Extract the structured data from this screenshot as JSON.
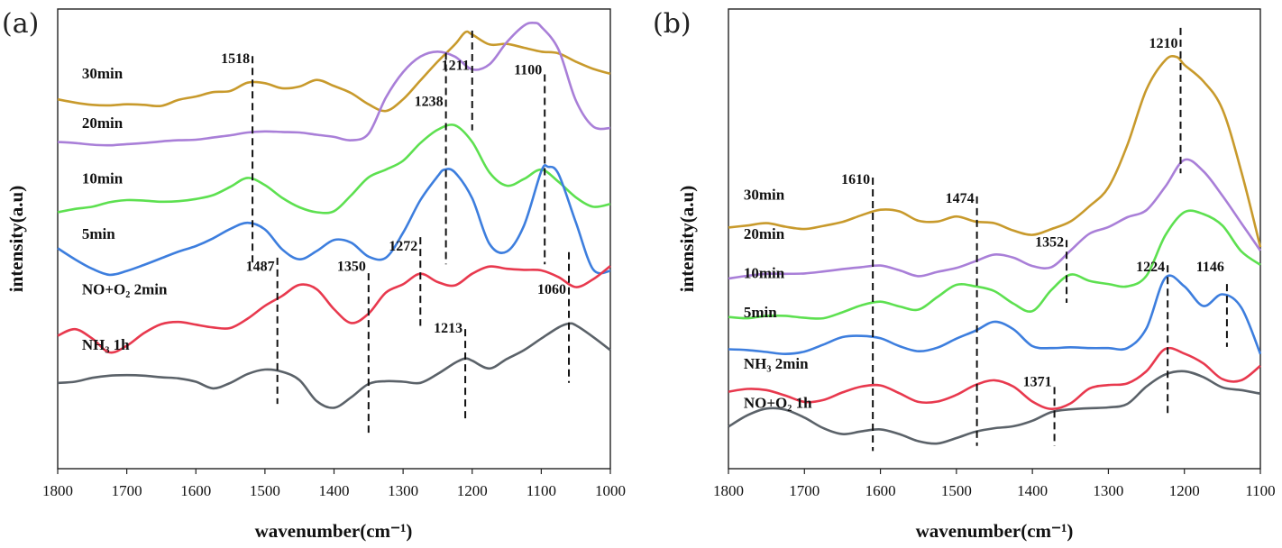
{
  "chart_data": [
    {
      "type": "line",
      "panel_label": "(a)",
      "xlabel": "wavenumber(cm⁻¹)",
      "ylabel": "intensity(a.u)",
      "xlim": [
        1800,
        1000
      ],
      "x_ticks": [
        1800,
        1700,
        1600,
        1500,
        1400,
        1300,
        1200,
        1100,
        1000
      ],
      "grid": false,
      "series": [
        {
          "name": "30min",
          "color": "#c89a2c",
          "label_x": 1765,
          "label_y": 6.45,
          "x": [
            1800,
            1775,
            1750,
            1725,
            1700,
            1675,
            1650,
            1625,
            1600,
            1575,
            1550,
            1525,
            1500,
            1475,
            1450,
            1425,
            1400,
            1375,
            1350,
            1325,
            1300,
            1275,
            1250,
            1225,
            1210,
            1200,
            1175,
            1150,
            1125,
            1100,
            1075,
            1050,
            1025,
            1000
          ],
          "y": [
            6.07,
            6.01,
            5.97,
            5.96,
            5.98,
            5.97,
            5.95,
            6.06,
            6.12,
            6.2,
            6.22,
            6.37,
            6.36,
            6.27,
            6.3,
            6.42,
            6.31,
            6.18,
            5.98,
            5.86,
            6.07,
            6.41,
            6.75,
            7.06,
            7.28,
            7.24,
            7.06,
            7.07,
            7.0,
            6.93,
            6.9,
            6.75,
            6.62,
            6.53
          ]
        },
        {
          "name": "20min",
          "color": "#a97fd8",
          "label_x": 1765,
          "label_y": 5.55,
          "x": [
            1800,
            1775,
            1750,
            1725,
            1700,
            1675,
            1650,
            1625,
            1600,
            1575,
            1550,
            1525,
            1500,
            1475,
            1450,
            1425,
            1400,
            1375,
            1350,
            1325,
            1300,
            1275,
            1250,
            1225,
            1200,
            1175,
            1150,
            1125,
            1110,
            1100,
            1075,
            1050,
            1025,
            1000
          ],
          "y": [
            5.3,
            5.28,
            5.25,
            5.24,
            5.26,
            5.28,
            5.31,
            5.33,
            5.34,
            5.38,
            5.42,
            5.47,
            5.49,
            5.48,
            5.47,
            5.43,
            5.39,
            5.33,
            5.45,
            6.1,
            6.56,
            6.84,
            6.93,
            6.84,
            6.61,
            6.7,
            7.1,
            7.4,
            7.45,
            7.38,
            6.97,
            6.05,
            5.58,
            5.55
          ]
        },
        {
          "name": "10min",
          "color": "#5de050",
          "label_x": 1765,
          "label_y": 4.55,
          "x": [
            1800,
            1775,
            1750,
            1725,
            1700,
            1675,
            1650,
            1625,
            1600,
            1575,
            1550,
            1525,
            1500,
            1475,
            1450,
            1425,
            1400,
            1375,
            1350,
            1325,
            1300,
            1275,
            1250,
            1225,
            1200,
            1175,
            1150,
            1125,
            1100,
            1075,
            1050,
            1025,
            1000
          ],
          "y": [
            4.03,
            4.09,
            4.13,
            4.21,
            4.25,
            4.24,
            4.22,
            4.23,
            4.27,
            4.34,
            4.49,
            4.65,
            4.52,
            4.29,
            4.12,
            4.03,
            4.05,
            4.34,
            4.66,
            4.8,
            4.96,
            5.28,
            5.52,
            5.6,
            5.3,
            4.75,
            4.51,
            4.63,
            4.8,
            4.58,
            4.3,
            4.13,
            4.18
          ]
        },
        {
          "name": "5min",
          "color": "#3d7ede",
          "label_x": 1765,
          "label_y": 3.55,
          "x": [
            1800,
            1775,
            1750,
            1725,
            1700,
            1675,
            1650,
            1625,
            1600,
            1575,
            1550,
            1525,
            1500,
            1475,
            1450,
            1425,
            1400,
            1375,
            1350,
            1325,
            1300,
            1275,
            1250,
            1240,
            1225,
            1200,
            1175,
            1150,
            1125,
            1100,
            1090,
            1075,
            1050,
            1025,
            1000
          ],
          "y": [
            3.38,
            3.18,
            3.01,
            2.9,
            2.97,
            3.08,
            3.2,
            3.32,
            3.42,
            3.56,
            3.73,
            3.84,
            3.72,
            3.36,
            3.18,
            3.33,
            3.53,
            3.48,
            3.23,
            3.21,
            3.66,
            4.25,
            4.68,
            4.8,
            4.75,
            4.28,
            3.46,
            3.32,
            3.79,
            4.77,
            4.85,
            4.72,
            3.85,
            3.0,
            2.97
          ]
        },
        {
          "name": "NO+O₂ 2min",
          "color": "#e8394e",
          "label_x": 1765,
          "label_y": 2.55,
          "x": [
            1800,
            1775,
            1750,
            1725,
            1700,
            1675,
            1650,
            1625,
            1600,
            1575,
            1550,
            1525,
            1500,
            1475,
            1450,
            1425,
            1400,
            1375,
            1350,
            1325,
            1300,
            1275,
            1250,
            1225,
            1200,
            1175,
            1150,
            1125,
            1100,
            1075,
            1050,
            1025,
            1000
          ],
          "y": [
            1.8,
            1.92,
            1.75,
            1.5,
            1.62,
            1.85,
            2.01,
            2.05,
            2.0,
            1.95,
            1.94,
            2.11,
            2.34,
            2.52,
            2.72,
            2.64,
            2.28,
            2.03,
            2.2,
            2.58,
            2.73,
            2.92,
            2.77,
            2.71,
            2.92,
            3.05,
            3.01,
            2.99,
            2.98,
            2.86,
            2.68,
            2.82,
            3.06
          ]
        },
        {
          "name": "NH₃ 1h",
          "color": "#5b6269",
          "label_x": 1765,
          "label_y": 1.55,
          "x": [
            1800,
            1775,
            1750,
            1725,
            1700,
            1675,
            1650,
            1625,
            1600,
            1575,
            1550,
            1525,
            1500,
            1475,
            1450,
            1425,
            1400,
            1375,
            1350,
            1325,
            1300,
            1275,
            1250,
            1225,
            1210,
            1200,
            1175,
            1150,
            1125,
            1100,
            1075,
            1060,
            1050,
            1025,
            1000
          ],
          "y": [
            0.95,
            0.97,
            1.04,
            1.08,
            1.09,
            1.08,
            1.05,
            1.03,
            0.97,
            0.85,
            0.95,
            1.11,
            1.19,
            1.15,
            1.0,
            0.62,
            0.5,
            0.69,
            0.93,
            0.98,
            0.97,
            0.95,
            1.11,
            1.31,
            1.39,
            1.35,
            1.21,
            1.38,
            1.54,
            1.75,
            1.95,
            2.02,
            1.99,
            1.78,
            1.54
          ]
        }
      ],
      "peak_markers": [
        {
          "label": "1518",
          "x": 1518,
          "y_top": 6.85,
          "y_bottom": 3.05,
          "label_y": 6.72
        },
        {
          "label": "1238",
          "x": 1238,
          "y_top": 6.91,
          "y_bottom": 3.09,
          "label_y": 5.95
        },
        {
          "label": "1211",
          "x": 1200,
          "y_top": 7.31,
          "y_bottom": 5.51,
          "label_y": 6.6
        },
        {
          "label": "1100",
          "x": 1095,
          "y_top": 6.52,
          "y_bottom": 3.09,
          "label_y": 6.52
        },
        {
          "label": "1487",
          "x": 1482,
          "y_top": 3.21,
          "y_bottom": 0.57,
          "label_y": 2.97
        },
        {
          "label": "1350",
          "x": 1350,
          "y_top": 2.93,
          "y_bottom": 0.04,
          "label_y": 2.97
        },
        {
          "label": "1272",
          "x": 1275,
          "y_top": 3.58,
          "y_bottom": 1.98,
          "label_y": 3.34
        },
        {
          "label": "1213",
          "x": 1210,
          "y_top": 1.92,
          "y_bottom": 0.3,
          "label_y": 1.86
        },
        {
          "label": "1060",
          "x": 1060,
          "y_top": 3.31,
          "y_bottom": 0.95,
          "label_y": 2.56
        }
      ]
    },
    {
      "type": "line",
      "panel_label": "(b)",
      "xlabel": "wavenumber(cm⁻¹)",
      "ylabel": "intensity(a.u)",
      "xlim": [
        1800,
        1100
      ],
      "x_ticks": [
        1800,
        1700,
        1600,
        1500,
        1400,
        1300,
        1200,
        1100
      ],
      "grid": false,
      "series": [
        {
          "name": "30min",
          "color": "#c89a2c",
          "label_x": 1780,
          "label_y": 5.75,
          "x": [
            1800,
            1775,
            1750,
            1725,
            1700,
            1675,
            1650,
            1625,
            1600,
            1575,
            1550,
            1525,
            1500,
            1475,
            1450,
            1425,
            1400,
            1375,
            1350,
            1325,
            1300,
            1275,
            1250,
            1225,
            1210,
            1200,
            1175,
            1150,
            1125,
            1100
          ],
          "y": [
            5.04,
            5.09,
            5.15,
            5.06,
            5.0,
            5.08,
            5.18,
            5.35,
            5.49,
            5.45,
            5.21,
            5.19,
            5.32,
            5.19,
            5.15,
            4.96,
            4.85,
            5.0,
            5.19,
            5.58,
            6.06,
            7.14,
            8.55,
            9.3,
            9.38,
            9.18,
            8.76,
            8.05,
            6.46,
            4.54
          ]
        },
        {
          "name": "20min",
          "color": "#a97fd8",
          "label_x": 1780,
          "label_y": 4.75,
          "x": [
            1800,
            1775,
            1750,
            1725,
            1700,
            1675,
            1650,
            1625,
            1600,
            1575,
            1550,
            1525,
            1500,
            1475,
            1450,
            1425,
            1400,
            1375,
            1350,
            1325,
            1300,
            1275,
            1250,
            1225,
            1200,
            1175,
            1150,
            1125,
            1100
          ],
          "y": [
            3.74,
            3.81,
            3.86,
            3.86,
            3.87,
            3.92,
            3.98,
            4.03,
            4.07,
            3.95,
            3.8,
            3.91,
            4.01,
            4.18,
            4.35,
            4.27,
            4.06,
            4.03,
            4.45,
            4.88,
            5.05,
            5.3,
            5.48,
            6.08,
            6.76,
            6.47,
            5.85,
            5.15,
            4.45
          ]
        },
        {
          "name": "10min",
          "color": "#5de050",
          "label_x": 1780,
          "label_y": 3.75,
          "x": [
            1800,
            1775,
            1750,
            1725,
            1700,
            1675,
            1650,
            1625,
            1600,
            1575,
            1550,
            1525,
            1500,
            1475,
            1450,
            1425,
            1400,
            1375,
            1350,
            1325,
            1300,
            1275,
            1250,
            1225,
            1200,
            1175,
            1150,
            1125,
            1100
          ],
          "y": [
            2.76,
            2.73,
            2.79,
            2.79,
            2.74,
            2.73,
            2.88,
            3.06,
            3.15,
            3.03,
            2.95,
            3.27,
            3.58,
            3.54,
            3.42,
            3.1,
            2.91,
            3.45,
            3.84,
            3.68,
            3.6,
            3.54,
            3.81,
            4.84,
            5.43,
            5.38,
            5.09,
            4.43,
            4.09
          ]
        },
        {
          "name": "5min",
          "color": "#3d7ede",
          "label_x": 1780,
          "label_y": 2.75,
          "x": [
            1800,
            1775,
            1750,
            1725,
            1700,
            1675,
            1650,
            1625,
            1600,
            1575,
            1550,
            1525,
            1500,
            1475,
            1450,
            1425,
            1400,
            1375,
            1350,
            1325,
            1300,
            1275,
            1250,
            1225,
            1200,
            1175,
            1150,
            1125,
            1100
          ],
          "y": [
            1.94,
            1.92,
            1.87,
            1.82,
            1.88,
            2.06,
            2.25,
            2.28,
            2.22,
            2.02,
            1.89,
            1.98,
            2.21,
            2.41,
            2.64,
            2.45,
            2.02,
            1.97,
            1.99,
            1.97,
            1.97,
            1.97,
            2.47,
            3.76,
            3.54,
            3.04,
            3.34,
            3.0,
            1.82
          ]
        },
        {
          "name": "NH₃ 2min",
          "color": "#e8394e",
          "label_x": 1780,
          "label_y": 1.45,
          "x": [
            1800,
            1775,
            1750,
            1725,
            1700,
            1675,
            1650,
            1625,
            1600,
            1575,
            1550,
            1525,
            1500,
            1475,
            1450,
            1425,
            1400,
            1375,
            1350,
            1325,
            1300,
            1275,
            1250,
            1225,
            1200,
            1175,
            1150,
            1125,
            1100
          ],
          "y": [
            0.86,
            0.93,
            0.9,
            0.76,
            0.6,
            0.65,
            0.84,
            0.99,
            1.02,
            0.82,
            0.6,
            0.61,
            0.78,
            1.03,
            1.15,
            0.99,
            0.61,
            0.42,
            0.56,
            0.94,
            1.03,
            1.07,
            1.38,
            1.95,
            1.83,
            1.58,
            1.18,
            1.15,
            1.52
          ]
        },
        {
          "name": "NO+O₂ 1h",
          "color": "#5b6269",
          "label_x": 1780,
          "label_y": 0.45,
          "x": [
            1800,
            1775,
            1750,
            1725,
            1700,
            1675,
            1650,
            1625,
            1600,
            1575,
            1550,
            1525,
            1500,
            1475,
            1450,
            1425,
            1400,
            1375,
            1350,
            1325,
            1300,
            1275,
            1250,
            1225,
            1200,
            1175,
            1150,
            1125,
            1100
          ],
          "y": [
            -0.03,
            0.26,
            0.43,
            0.4,
            0.2,
            -0.07,
            -0.22,
            -0.15,
            -0.1,
            -0.22,
            -0.4,
            -0.46,
            -0.32,
            -0.16,
            -0.07,
            -0.02,
            0.12,
            0.34,
            0.41,
            0.44,
            0.46,
            0.55,
            0.99,
            1.3,
            1.38,
            1.23,
            0.97,
            0.9,
            0.81
          ]
        }
      ],
      "peak_markers": [
        {
          "label": "1610",
          "x": 1610,
          "y_top": 6.31,
          "y_bottom": -0.65,
          "label_y": 6.15
        },
        {
          "label": "1474",
          "x": 1473,
          "y_top": 5.83,
          "y_bottom": -0.52,
          "label_y": 5.67
        },
        {
          "label": "1352",
          "x": 1355,
          "y_top": 4.72,
          "y_bottom": 3.12,
          "label_y": 4.56
        },
        {
          "label": "1210",
          "x": 1205,
          "y_top": 10.12,
          "y_bottom": 6.42,
          "label_y": 9.61
        },
        {
          "label": "1224",
          "x": 1222,
          "y_top": 4.08,
          "y_bottom": 0.24,
          "label_y": 3.92
        },
        {
          "label": "1146",
          "x": 1144,
          "y_top": 3.6,
          "y_bottom": 2.0,
          "label_y": 3.92
        },
        {
          "label": "1371",
          "x": 1371,
          "y_top": 0.98,
          "y_bottom": -0.52,
          "label_y": 1.0
        }
      ]
    }
  ]
}
